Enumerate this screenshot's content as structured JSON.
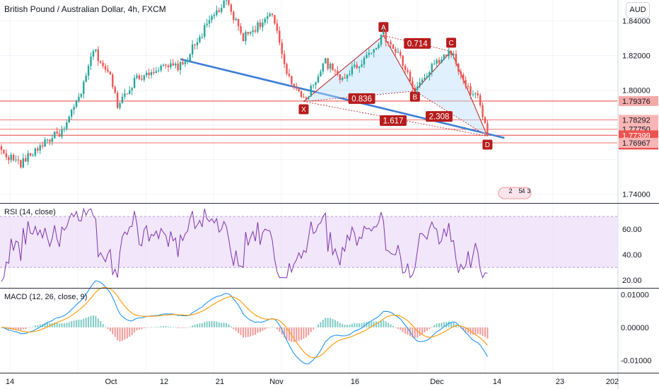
{
  "header": {
    "title": "British Pound / Australian Dollar, 4h, FXCM",
    "currency": "AUD"
  },
  "panes": {
    "rsi_title": "RSI (14, close)",
    "macd_title": "MACD (12, 26, close, 9)"
  },
  "chart_data": {
    "type": "candlestick",
    "symbol": "GBPAUD",
    "interval": "4h",
    "x_ticks": [
      "14",
      "Oct",
      "12",
      "21",
      "Nov",
      "16",
      "Dec",
      "14",
      "23",
      "202"
    ],
    "price_axis_ticks": [
      "1.84000",
      "1.82000",
      "1.80000",
      "1.74000"
    ],
    "ylim": [
      1.735,
      1.852
    ],
    "price_levels": [
      {
        "label": "1.79376",
        "value": 1.79376,
        "kind": "resistance"
      },
      {
        "label": "1.78292",
        "value": 1.78292,
        "kind": "support"
      },
      {
        "label": "1.77750",
        "value": 1.7775,
        "kind": "support"
      },
      {
        "label": "1.77399",
        "value": 1.77399,
        "kind": "current"
      },
      {
        "label": "43:32",
        "value": 1.77399,
        "kind": "countdown"
      },
      {
        "label": "1.76967",
        "value": 1.76967,
        "kind": "support"
      }
    ],
    "pattern_points": [
      {
        "name": "X",
        "bar": 125,
        "price": 1.7935
      },
      {
        "name": "A",
        "bar": 158,
        "price": 1.8315
      },
      {
        "name": "B",
        "bar": 171,
        "price": 1.7995
      },
      {
        "name": "C",
        "bar": 186,
        "price": 1.8225
      },
      {
        "name": "D",
        "bar": 201,
        "price": 1.7735
      }
    ],
    "ratios": [
      {
        "label": "0.714",
        "bar": 172,
        "price": 1.827
      },
      {
        "label": "0.836",
        "bar": 149,
        "price": 1.7952
      },
      {
        "label": "1.617",
        "bar": 162,
        "price": 1.7825
      },
      {
        "label": "2.308",
        "bar": 181,
        "price": 1.7849
      }
    ],
    "trendline": {
      "from": {
        "bar": 74,
        "price": 1.8179
      },
      "to": {
        "bar": 208,
        "price": 1.7725
      }
    },
    "event_badges": [
      "2",
      "5",
      "4",
      "3"
    ],
    "rsi": {
      "name": "RSI (14, close)",
      "ticks": [
        "60.00",
        "40.00",
        "20.00"
      ],
      "ylim": [
        14,
        80
      ],
      "band": [
        30,
        70
      ]
    },
    "macd": {
      "name": "MACD (12, 26, close, 9)",
      "ticks": [
        "0.01000",
        "0.00000",
        "-0.01000"
      ],
      "ylim": [
        -0.0138,
        0.0118
      ]
    },
    "colors": {
      "up": "#26a69a",
      "down": "#ef5350",
      "pattern": "#b71c1c",
      "pattern_fill": "#bbdefb",
      "trendline": "#3d7dd8",
      "level_line": "#ef5350",
      "rsi": "#7e34ad",
      "rsi_band": "#e5d2f5",
      "macd": "#2196f3",
      "signal": "#ff9800"
    }
  }
}
